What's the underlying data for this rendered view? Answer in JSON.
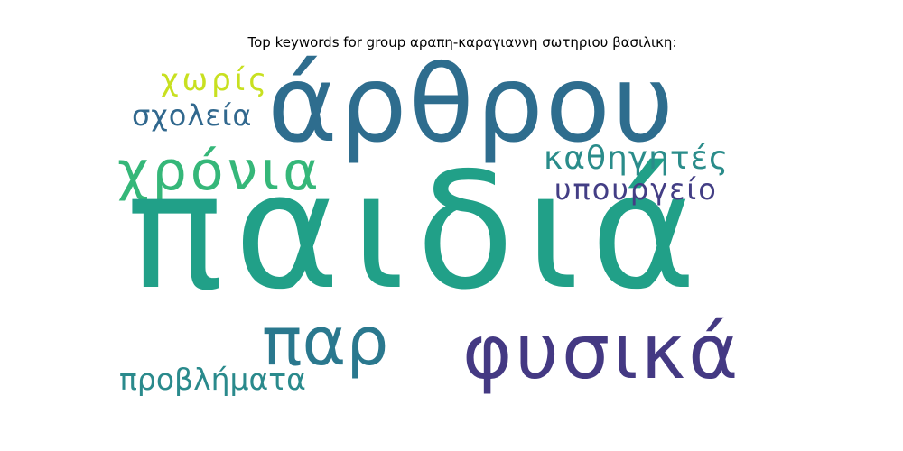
{
  "title": "Top keywords for group αραπη-καραγιαννη σωτηριου βασιλικη:",
  "words": [
    {
      "text": "παιδιά",
      "color": "#21a088"
    },
    {
      "text": "άρθρου",
      "color": "#2e6d8e"
    },
    {
      "text": "φυσικά",
      "color": "#443983"
    },
    {
      "text": "παρ",
      "color": "#2a788e"
    },
    {
      "text": "χρόνια",
      "color": "#35b779"
    },
    {
      "text": "καθηγητές",
      "color": "#2a8c8a"
    },
    {
      "text": "υπουργείο",
      "color": "#433e85"
    },
    {
      "text": "σχολεία",
      "color": "#31688e"
    },
    {
      "text": "χωρίς",
      "color": "#c8e020"
    },
    {
      "text": "προβλήματα",
      "color": "#2a8a8c"
    }
  ]
}
